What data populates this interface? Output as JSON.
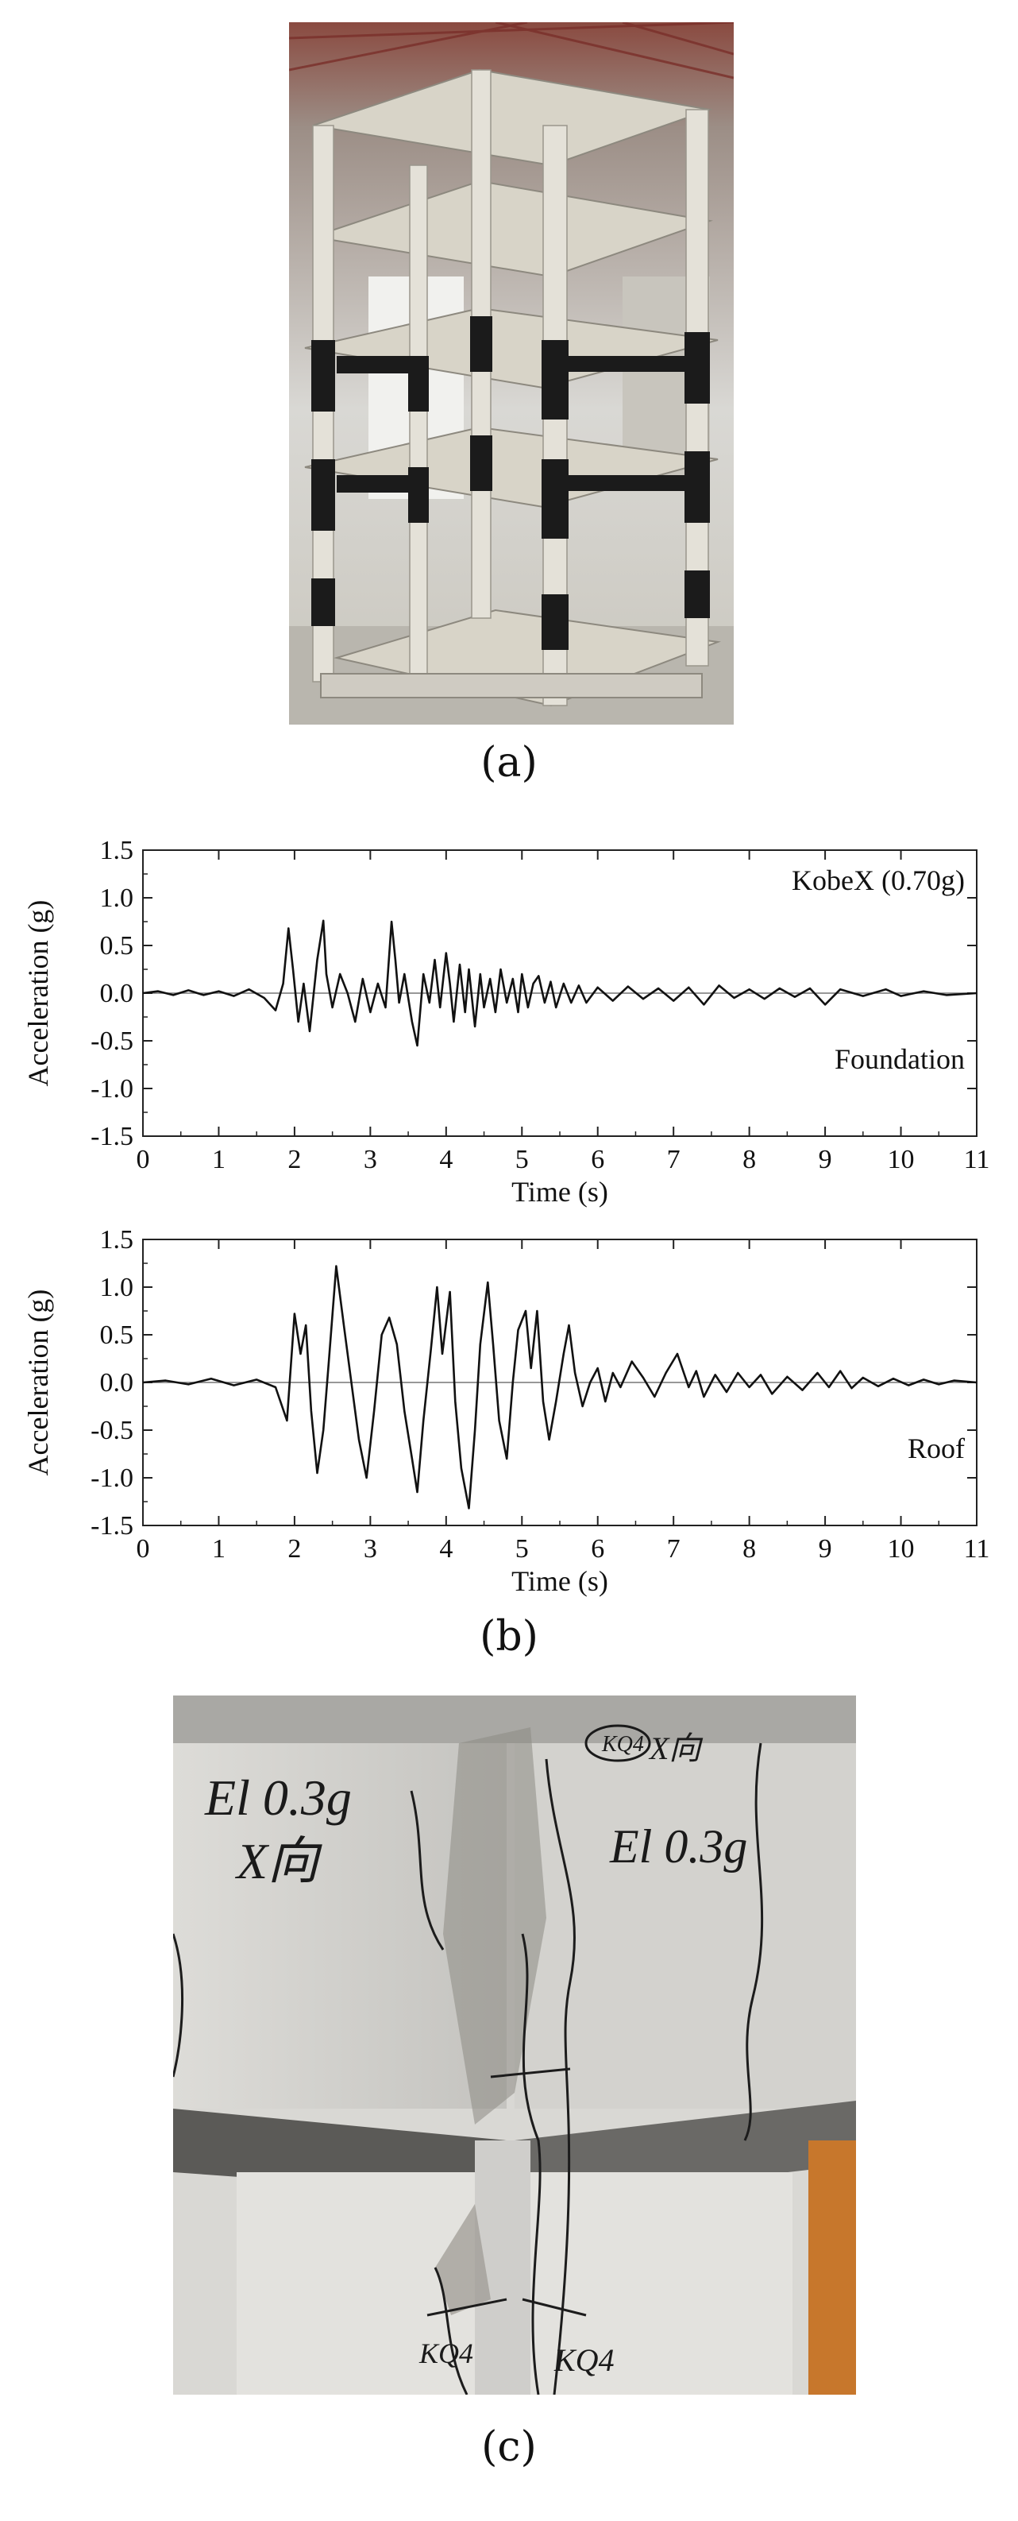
{
  "figure": {
    "captions": {
      "a": "(a)",
      "b": "(b)",
      "c": "(c)"
    },
    "photo_a": {
      "subject": "four-storey reinforced concrete frame model on shaking table with strengthened joints"
    },
    "photo_c": {
      "subject": "cracked beam-column joint close-up",
      "annotations": [
        "El 0.3g",
        "X向",
        "El 0.3g",
        "KQ4",
        "KQ4",
        "KQ4",
        "X向"
      ]
    }
  },
  "chart_data": [
    {
      "type": "line",
      "title": "",
      "annotation_top": "KobeX (0.70g)",
      "annotation_bottom": "Foundation",
      "xlabel": "Time (s)",
      "ylabel": "Acceleration (g)",
      "xlim": [
        0,
        11
      ],
      "ylim": [
        -1.5,
        1.5
      ],
      "xticks": [
        "0",
        "1",
        "2",
        "3",
        "4",
        "5",
        "6",
        "7",
        "8",
        "9",
        "10",
        "11"
      ],
      "yticks": [
        "1.5",
        "1.0",
        "0.5",
        "0.0",
        "-0.5",
        "-1.0",
        "-1.5"
      ],
      "series": [
        {
          "x": [
            0,
            0.2,
            0.4,
            0.6,
            0.8,
            1.0,
            1.2,
            1.4,
            1.6,
            1.75,
            1.85,
            1.92,
            1.98,
            2.05,
            2.12,
            2.2,
            2.3,
            2.38,
            2.42,
            2.5,
            2.6,
            2.7,
            2.8,
            2.9,
            3.0,
            3.1,
            3.2,
            3.28,
            3.33,
            3.38,
            3.45,
            3.55,
            3.62,
            3.7,
            3.78,
            3.85,
            3.92,
            4.0,
            4.05,
            4.1,
            4.18,
            4.25,
            4.3,
            4.38,
            4.45,
            4.5,
            4.58,
            4.65,
            4.72,
            4.8,
            4.88,
            4.95,
            5.0,
            5.08,
            5.15,
            5.22,
            5.3,
            5.38,
            5.45,
            5.55,
            5.65,
            5.75,
            5.85,
            6.0,
            6.2,
            6.4,
            6.6,
            6.8,
            7.0,
            7.2,
            7.4,
            7.6,
            7.8,
            8.0,
            8.2,
            8.4,
            8.6,
            8.8,
            9.0,
            9.2,
            9.5,
            9.8,
            10.0,
            10.3,
            10.6,
            11.0
          ],
          "y": [
            0,
            0.02,
            -0.02,
            0.03,
            -0.02,
            0.02,
            -0.03,
            0.04,
            -0.05,
            -0.18,
            0.1,
            0.68,
            0.25,
            -0.3,
            0.1,
            -0.4,
            0.35,
            0.76,
            0.2,
            -0.15,
            0.2,
            0.0,
            -0.3,
            0.15,
            -0.2,
            0.1,
            -0.15,
            0.75,
            0.35,
            -0.1,
            0.2,
            -0.3,
            -0.55,
            0.2,
            -0.1,
            0.35,
            -0.15,
            0.42,
            0.1,
            -0.3,
            0.3,
            -0.2,
            0.25,
            -0.35,
            0.2,
            -0.15,
            0.15,
            -0.2,
            0.25,
            -0.1,
            0.15,
            -0.2,
            0.2,
            -0.15,
            0.1,
            0.18,
            -0.1,
            0.12,
            -0.15,
            0.1,
            -0.1,
            0.08,
            -0.1,
            0.06,
            -0.08,
            0.07,
            -0.06,
            0.05,
            -0.08,
            0.06,
            -0.12,
            0.08,
            -0.05,
            0.04,
            -0.06,
            0.05,
            -0.04,
            0.05,
            -0.12,
            0.04,
            -0.03,
            0.04,
            -0.03,
            0.02,
            -0.02,
            0.0
          ]
        }
      ]
    },
    {
      "type": "line",
      "title": "",
      "annotation_bottom": "Roof",
      "xlabel": "Time (s)",
      "ylabel": "Acceleration (g)",
      "xlim": [
        0,
        11
      ],
      "ylim": [
        -1.5,
        1.5
      ],
      "xticks": [
        "0",
        "1",
        "2",
        "3",
        "4",
        "5",
        "6",
        "7",
        "8",
        "9",
        "10",
        "11"
      ],
      "yticks": [
        "1.5",
        "1.0",
        "0.5",
        "0.0",
        "-0.5",
        "-1.0",
        "-1.5"
      ],
      "series": [
        {
          "x": [
            0,
            0.3,
            0.6,
            0.9,
            1.2,
            1.5,
            1.75,
            1.9,
            2.0,
            2.08,
            2.15,
            2.22,
            2.3,
            2.38,
            2.45,
            2.55,
            2.65,
            2.75,
            2.85,
            2.95,
            3.05,
            3.15,
            3.25,
            3.35,
            3.45,
            3.55,
            3.62,
            3.7,
            3.8,
            3.88,
            3.95,
            4.05,
            4.12,
            4.2,
            4.3,
            4.38,
            4.45,
            4.55,
            4.62,
            4.7,
            4.8,
            4.88,
            4.95,
            5.05,
            5.12,
            5.2,
            5.28,
            5.36,
            5.45,
            5.55,
            5.62,
            5.7,
            5.8,
            5.9,
            6.0,
            6.1,
            6.2,
            6.3,
            6.45,
            6.6,
            6.75,
            6.9,
            7.05,
            7.2,
            7.3,
            7.4,
            7.55,
            7.7,
            7.85,
            8.0,
            8.15,
            8.3,
            8.5,
            8.7,
            8.9,
            9.05,
            9.2,
            9.35,
            9.5,
            9.7,
            9.9,
            10.1,
            10.3,
            10.5,
            10.7,
            11.0
          ],
          "y": [
            0,
            0.02,
            -0.02,
            0.04,
            -0.03,
            0.03,
            -0.05,
            -0.4,
            0.72,
            0.3,
            0.6,
            -0.3,
            -0.95,
            -0.5,
            0.2,
            1.22,
            0.6,
            0.0,
            -0.6,
            -1.0,
            -0.3,
            0.5,
            0.68,
            0.4,
            -0.3,
            -0.8,
            -1.15,
            -0.4,
            0.35,
            1.0,
            0.3,
            0.95,
            -0.2,
            -0.9,
            -1.32,
            -0.5,
            0.4,
            1.05,
            0.4,
            -0.4,
            -0.8,
            0.0,
            0.55,
            0.75,
            0.15,
            0.75,
            -0.2,
            -0.6,
            -0.2,
            0.3,
            0.6,
            0.1,
            -0.25,
            0.0,
            0.15,
            -0.2,
            0.1,
            -0.05,
            0.22,
            0.05,
            -0.15,
            0.1,
            0.3,
            -0.05,
            0.12,
            -0.15,
            0.08,
            -0.1,
            0.1,
            -0.05,
            0.08,
            -0.12,
            0.06,
            -0.08,
            0.1,
            -0.05,
            0.12,
            -0.06,
            0.05,
            -0.04,
            0.04,
            -0.03,
            0.03,
            -0.02,
            0.02,
            0.0
          ]
        }
      ]
    }
  ]
}
